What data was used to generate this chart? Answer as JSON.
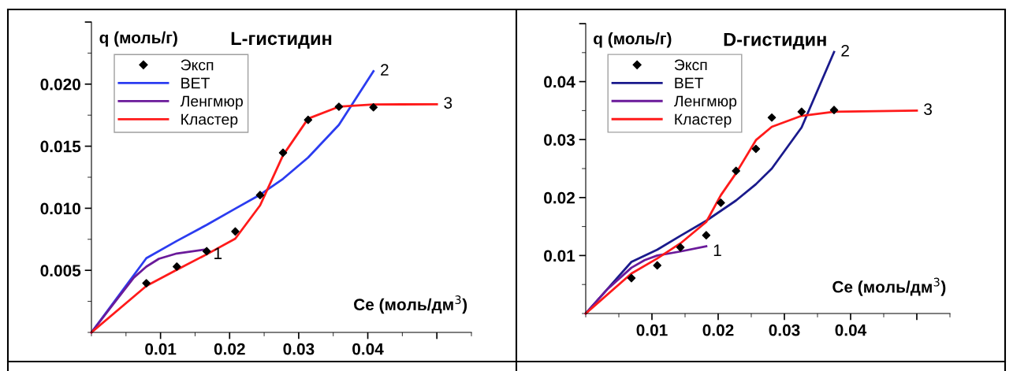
{
  "chart_data": [
    {
      "type": "line",
      "title": "L-гистидин",
      "xlabel": "Ce (моль/дм$^{3}$)",
      "ylabel": "q (моль/г)",
      "legend": "top left",
      "grid": false,
      "xlim": [
        0,
        0.055
      ],
      "ylim": [
        0,
        0.025
      ],
      "xticks": [
        0.01,
        0.02,
        0.03,
        0.04,
        {
          "value": 0.05,
          "label": null
        }
      ],
      "yticks": [
        {
          "value": 0.005,
          "label": "0.005"
        },
        {
          "value": 0.01,
          "label": "0.010"
        },
        {
          "value": 0.015,
          "label": "0.015"
        },
        {
          "value": 0.02,
          "label": "0.020"
        },
        {
          "value": 0.025,
          "label": null
        }
      ],
      "series": [
        {
          "name": "Эксп",
          "type": "scatter",
          "marker": "diamond",
          "color": "#000000",
          "x": [
            0.00795,
            0.01236,
            0.01668,
            0.02082,
            0.02441,
            0.02773,
            0.03136,
            0.03582,
            0.04082
          ],
          "values": [
            0.00396,
            0.0053,
            0.00654,
            0.00813,
            0.01106,
            0.01447,
            0.01712,
            0.01818,
            0.01813
          ]
        },
        {
          "name": "BET",
          "color": "#2b3cf0",
          "x": [
            0,
            0.00795,
            0.01236,
            0.01668,
            0.02082,
            0.02441,
            0.02773,
            0.03136,
            0.03582,
            0.04082
          ],
          "values": [
            0,
            0.00598,
            0.00737,
            0.00866,
            0.00997,
            0.01109,
            0.01237,
            0.01409,
            0.01672,
            0.02104
          ]
        },
        {
          "name": "Ленгмюр",
          "color": "#6a1a9a",
          "x": [
            0,
            0.00386,
            0.00614,
            0.00795,
            0.00977,
            0.01236,
            0.01668
          ],
          "values": [
            0,
            0.00278,
            0.00442,
            0.0053,
            0.00593,
            0.00636,
            0.00669
          ]
        },
        {
          "name": "Кластер",
          "color": "#ff1a1a",
          "x": [
            0,
            0.00795,
            0.01236,
            0.01668,
            0.02082,
            0.02441,
            0.02773,
            0.03136,
            0.03582,
            0.04082,
            0.05
          ],
          "values": [
            0,
            0.00374,
            0.00505,
            0.00629,
            0.00755,
            0.01023,
            0.01427,
            0.01722,
            0.01818,
            0.01836,
            0.01838
          ]
        }
      ],
      "annotations": [
        {
          "text": "1",
          "x": 0.01668,
          "y": 0.00669
        },
        {
          "text": "2",
          "x": 0.04082,
          "y": 0.02104
        },
        {
          "text": "3",
          "x": 0.05,
          "y": 0.01838
        }
      ]
    },
    {
      "type": "line",
      "title": "D-гистидин",
      "xlabel": "Ce (моль/дм$^{3}$)",
      "ylabel": "q (моль/г)",
      "legend": "top left",
      "grid": false,
      "xlim": [
        0,
        0.055
      ],
      "ylim": [
        0,
        0.05
      ],
      "xticks": [
        0.01,
        0.02,
        0.03,
        0.04,
        {
          "value": 0.05,
          "label": null
        }
      ],
      "yticks": [
        0.01,
        0.02,
        0.03,
        0.04,
        {
          "value": 0.05,
          "label": null
        }
      ],
      "series": [
        {
          "name": "Эксп",
          "type": "scatter",
          "marker": "diamond",
          "color": "#000000",
          "x": [
            0.0069,
            0.0108,
            0.0143,
            0.0182,
            0.0204,
            0.0227,
            0.0257,
            0.0281,
            0.0326,
            0.0375
          ],
          "values": [
            0.0061,
            0.0083,
            0.0114,
            0.0135,
            0.0191,
            0.0246,
            0.0284,
            0.0338,
            0.0348,
            0.0351
          ]
        },
        {
          "name": "BET",
          "color": "#1a1a8c",
          "x": [
            0,
            0.0069,
            0.0108,
            0.0143,
            0.0182,
            0.0227,
            0.0257,
            0.0281,
            0.0326,
            0.0375
          ],
          "values": [
            0,
            0.0089,
            0.011,
            0.0134,
            0.016,
            0.0195,
            0.0223,
            0.025,
            0.0321,
            0.0451
          ]
        },
        {
          "name": "Ленгмюр",
          "color": "#6a1a9a",
          "x": [
            0,
            0.0032,
            0.0069,
            0.0089,
            0.0108,
            0.0143,
            0.0182
          ],
          "values": [
            0,
            0.0041,
            0.0079,
            0.0092,
            0.01,
            0.0107,
            0.0116
          ]
        },
        {
          "name": "Кластер",
          "color": "#ff1a1a",
          "x": [
            0,
            0.0069,
            0.0108,
            0.0143,
            0.0182,
            0.0204,
            0.0227,
            0.0257,
            0.0281,
            0.0326,
            0.0375,
            0.05
          ],
          "values": [
            0,
            0.0069,
            0.0095,
            0.0121,
            0.0158,
            0.0204,
            0.0242,
            0.0299,
            0.0322,
            0.0341,
            0.0348,
            0.035
          ]
        }
      ],
      "annotations": [
        {
          "text": "1",
          "x": 0.0182,
          "y": 0.0116
        },
        {
          "text": "2",
          "x": 0.0375,
          "y": 0.0451
        },
        {
          "text": "3",
          "x": 0.05,
          "y": 0.035
        }
      ]
    }
  ]
}
